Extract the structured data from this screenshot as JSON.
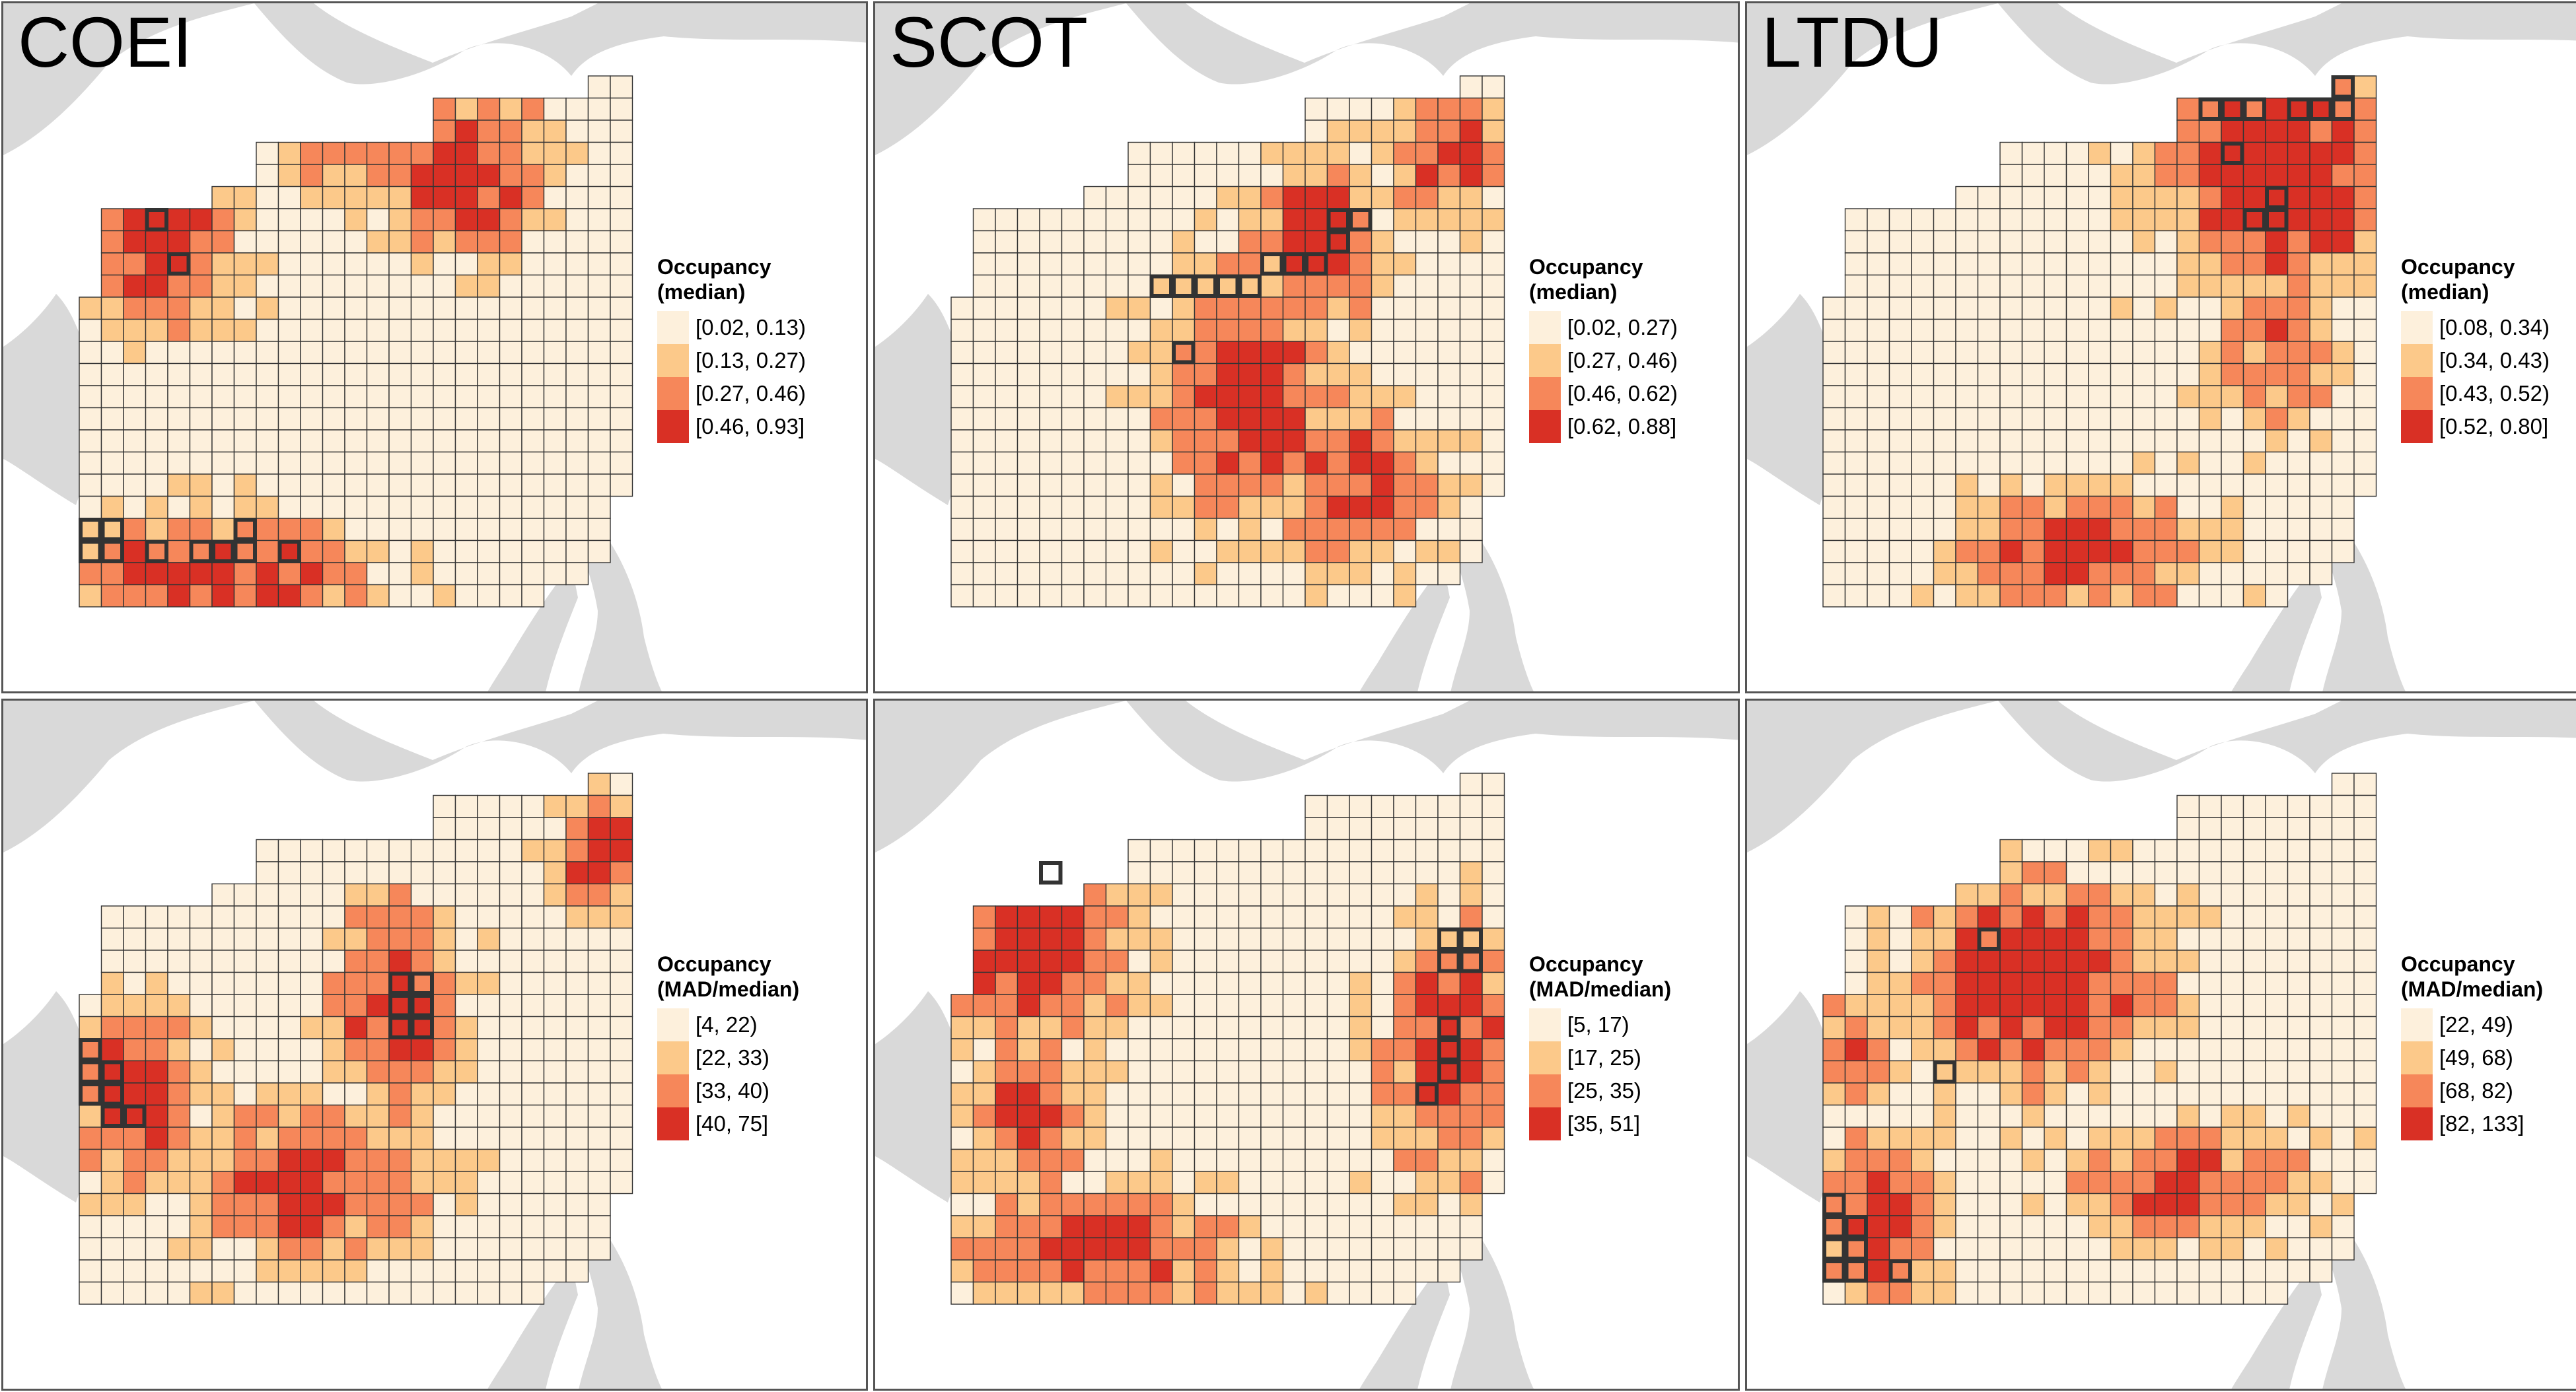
{
  "figure": {
    "panels": [
      {
        "id": "coei-median",
        "species": "COEI",
        "legend_title": [
          "Occupancy",
          "(median)"
        ],
        "classes": [
          "[0.02, 0.13)",
          "[0.13, 0.27)",
          "[0.27, 0.46)",
          "[0.46, 0.93]"
        ],
        "pattern": "coei_med"
      },
      {
        "id": "scot-median",
        "species": "SCOT",
        "legend_title": [
          "Occupancy",
          "(median)"
        ],
        "classes": [
          "[0.02, 0.27)",
          "[0.27, 0.46)",
          "[0.46, 0.62)",
          "[0.62, 0.88]"
        ],
        "pattern": "scot_med"
      },
      {
        "id": "ltdu-median",
        "species": "LTDU",
        "legend_title": [
          "Occupancy",
          "(median)"
        ],
        "classes": [
          "[0.08, 0.34)",
          "[0.34, 0.43)",
          "[0.43, 0.52)",
          "[0.52, 0.80]"
        ],
        "pattern": "ltdu_med"
      },
      {
        "id": "coei-mad",
        "species": "",
        "legend_title": [
          "Occupancy",
          "(MAD/median)"
        ],
        "classes": [
          "[4, 22)",
          "[22, 33)",
          "[33, 40)",
          "[40, 75]"
        ],
        "pattern": "coei_mad"
      },
      {
        "id": "scot-mad",
        "species": "",
        "legend_title": [
          "Occupancy",
          "(MAD/median)"
        ],
        "classes": [
          "[5, 17)",
          "[17, 25)",
          "[25, 35)",
          "[35, 51]"
        ],
        "pattern": "scot_mad"
      },
      {
        "id": "ltdu-mad",
        "species": "",
        "legend_title": [
          "Occupancy",
          "(MAD/median)"
        ],
        "classes": [
          "[22, 49)",
          "[49, 68)",
          "[68, 82)",
          "[82, 133]"
        ],
        "pattern": "ltdu_mad"
      }
    ]
  },
  "colors": {
    "classes": [
      "#fdf0dc",
      "#fcc98a",
      "#f6875a",
      "#d93025"
    ],
    "land": "#d9d9d9",
    "grid_line": "#333333",
    "highlight": "#333333"
  },
  "map_grid": {
    "cols": 25,
    "rows": 24,
    "row_extents": [
      [
        23,
        24
      ],
      [
        16,
        24
      ],
      [
        16,
        24
      ],
      [
        8,
        24
      ],
      [
        8,
        24
      ],
      [
        6,
        24
      ],
      [
        1,
        24
      ],
      [
        1,
        24
      ],
      [
        1,
        24
      ],
      [
        1,
        24
      ],
      [
        0,
        24
      ],
      [
        0,
        24
      ],
      [
        0,
        24
      ],
      [
        0,
        24
      ],
      [
        0,
        24
      ],
      [
        0,
        24
      ],
      [
        0,
        24
      ],
      [
        0,
        24
      ],
      [
        0,
        24
      ],
      [
        0,
        23
      ],
      [
        0,
        23
      ],
      [
        0,
        23
      ],
      [
        0,
        22
      ],
      [
        0,
        20
      ]
    ],
    "highlights": {
      "coei_med": [
        [
          6,
          3
        ],
        [
          8,
          4
        ],
        [
          20,
          0
        ],
        [
          20,
          1
        ],
        [
          21,
          0
        ],
        [
          21,
          1
        ],
        [
          21,
          3
        ],
        [
          21,
          5
        ],
        [
          21,
          6
        ],
        [
          21,
          7
        ],
        [
          20,
          7
        ],
        [
          21,
          9
        ]
      ],
      "scot_med": [
        [
          6,
          17
        ],
        [
          6,
          18
        ],
        [
          7,
          17
        ],
        [
          8,
          16
        ],
        [
          8,
          15
        ],
        [
          8,
          14
        ],
        [
          9,
          13
        ],
        [
          9,
          12
        ],
        [
          9,
          11
        ],
        [
          9,
          10
        ],
        [
          9,
          9
        ],
        [
          12,
          10
        ]
      ],
      "ltdu_med": [
        [
          0,
          23
        ],
        [
          1,
          23
        ],
        [
          1,
          17
        ],
        [
          1,
          18
        ],
        [
          1,
          19
        ],
        [
          1,
          21
        ],
        [
          1,
          22
        ],
        [
          3,
          18
        ],
        [
          5,
          20
        ],
        [
          6,
          19
        ],
        [
          6,
          20
        ]
      ],
      "coei_mad": [
        [
          9,
          14
        ],
        [
          9,
          15
        ],
        [
          10,
          14
        ],
        [
          10,
          15
        ],
        [
          11,
          15
        ],
        [
          11,
          14
        ],
        [
          12,
          0
        ],
        [
          13,
          0
        ],
        [
          13,
          1
        ],
        [
          14,
          0
        ],
        [
          14,
          1
        ],
        [
          15,
          1
        ],
        [
          15,
          2
        ]
      ],
      "scot_mad": [
        [
          4,
          4
        ],
        [
          7,
          22
        ],
        [
          7,
          23
        ],
        [
          8,
          22
        ],
        [
          8,
          23
        ],
        [
          11,
          22
        ],
        [
          12,
          22
        ],
        [
          13,
          22
        ],
        [
          14,
          21
        ]
      ],
      "ltdu_mad": [
        [
          7,
          7
        ],
        [
          13,
          5
        ],
        [
          19,
          0
        ],
        [
          20,
          0
        ],
        [
          20,
          1
        ],
        [
          21,
          0
        ],
        [
          21,
          1
        ],
        [
          22,
          0
        ],
        [
          22,
          1
        ],
        [
          22,
          3
        ]
      ]
    }
  }
}
